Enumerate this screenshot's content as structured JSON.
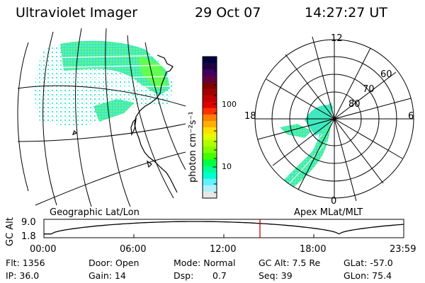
{
  "header": {
    "instrument": "Ultraviolet Imager",
    "date": "29 Oct 07",
    "time": "14:27:27 UT"
  },
  "geo_map": {
    "label": "Geographic Lat/Lon"
  },
  "polar_map": {
    "label": "Apex MLat/MLT",
    "mlt_labels": [
      "12",
      "18",
      "6",
      "0"
    ],
    "lat_labels": [
      "60",
      "70",
      "80"
    ]
  },
  "colorbar": {
    "unit_label": "photon cm⁻²s⁻¹",
    "ticks": [
      "100",
      "10"
    ],
    "colors": [
      "#000040",
      "#200040",
      "#400060",
      "#600040",
      "#800000",
      "#a00000",
      "#c00000",
      "#e00000",
      "#ff3000",
      "#ff8000",
      "#ffb000",
      "#ffe000",
      "#e0ff00",
      "#b0ff00",
      "#80ff00",
      "#40ff00",
      "#00ff40",
      "#00ff90",
      "#00ffd0",
      "#60f0ff",
      "#b0f0f8",
      "#e8e8e8"
    ]
  },
  "altitude_plot": {
    "ylabel": "GC Alt",
    "y_ticks": [
      "9.0",
      "1.8"
    ],
    "x_ticks": [
      "00:00",
      "06:00",
      "12:00",
      "18:00",
      "23:59"
    ],
    "curve_color": "#000000",
    "marker_color": "#cc0000"
  },
  "metadata": {
    "flt": "Flt: 1356",
    "ip": "IP: 36.0",
    "door": "Door: Open",
    "gain": "Gain: 14",
    "mode": "Mode: Normal",
    "dsp_label": "Dsp:",
    "dsp_value": "0.7",
    "gc_alt": "GC Alt: 7.5 Re",
    "seq": "Seq: 39",
    "glat": "GLat: -57.0",
    "glon": "GLon: 75.4"
  }
}
